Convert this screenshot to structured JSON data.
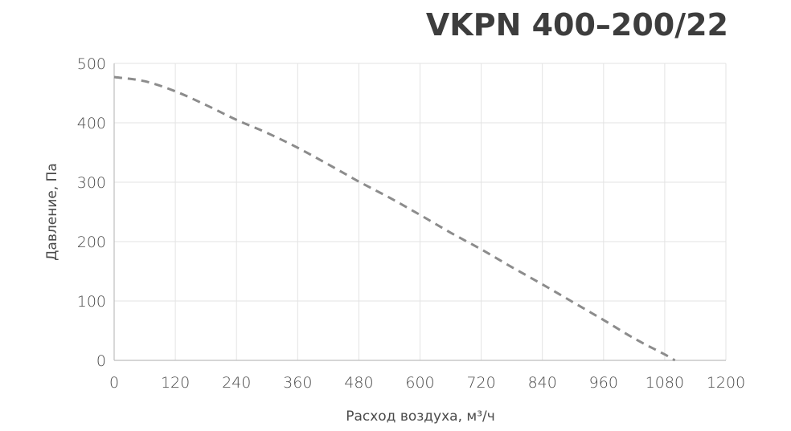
{
  "chart_data": {
    "type": "line",
    "title": "VKPN 400–200/22",
    "xlabel": "Расход воздуха, м³/ч",
    "ylabel": "Давление, Па",
    "xlim": [
      0,
      1200
    ],
    "ylim": [
      0,
      500
    ],
    "x_ticks": [
      "0",
      "120",
      "240",
      "360",
      "480",
      "600",
      "720",
      "840",
      "960",
      "1080",
      "1200"
    ],
    "y_ticks": [
      "0",
      "100",
      "200",
      "300",
      "400",
      "500"
    ],
    "grid": true,
    "series": [
      {
        "line_style": "dashed",
        "color": "#8c8c8c",
        "x": [
          0,
          60,
          120,
          180,
          240,
          300,
          360,
          420,
          480,
          540,
          600,
          660,
          720,
          780,
          840,
          900,
          960,
          1020,
          1080,
          1100
        ],
        "y": [
          477,
          470,
          453,
          430,
          405,
          383,
          358,
          330,
          301,
          274,
          245,
          215,
          187,
          157,
          128,
          98,
          68,
          37,
          10,
          0
        ]
      }
    ]
  }
}
